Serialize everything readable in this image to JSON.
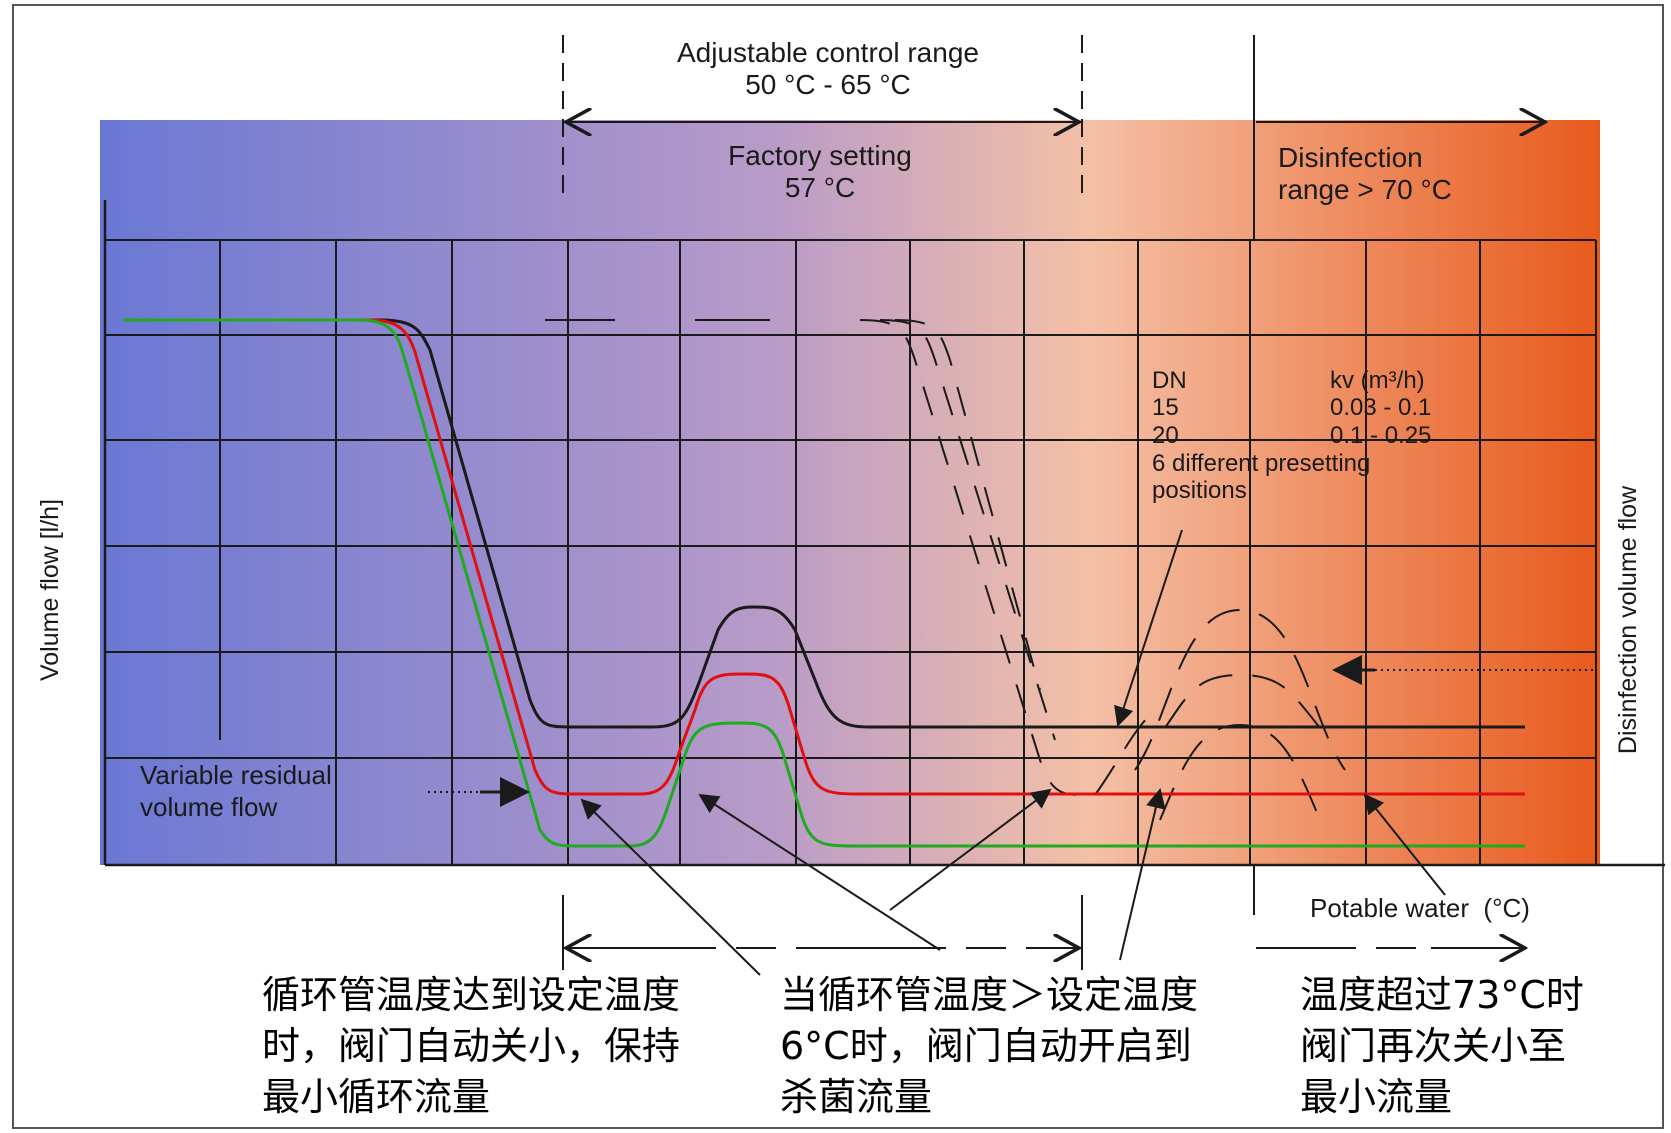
{
  "range_labels": {
    "adjustable_line1": "Adjustable control range",
    "adjustable_line2": "50 °C - 65 °C",
    "factory_line1": "Factory setting",
    "factory_line2": "57 °C",
    "disinfection_line1": "Disinfection",
    "disinfection_line2": "range > 70 °C"
  },
  "axes": {
    "y_label": "Volume flow [l/h]",
    "right_label": "Disinfection volume flow",
    "x_label": "Potable water  (°C)"
  },
  "dn_table": {
    "header_dn": "DN",
    "header_kv": "kv (m³/h)",
    "row1_dn": "15",
    "row1_kv": "0.03 - 0.1",
    "row2_dn": "20",
    "row2_kv": "0.1 - 0.25",
    "note_line1": "6 different presetting",
    "note_line2": "positions"
  },
  "residual_label_line1": "Variable residual",
  "residual_label_line2": "volume flow",
  "captions": {
    "left": "循环管温度达到设定温度\n时，阀门自动关小，保持\n最小循环流量",
    "middle": "当循环管温度＞设定温度\n6°C时，阀门自动开启到\n杀菌流量",
    "right": "温度超过73°C时\n阀门再次关小至\n最小流量"
  },
  "colors": {
    "gradient_start": "#6a78d4",
    "gradient_mid": "#b99bc8",
    "gradient_light": "#f4c0a6",
    "gradient_end": "#e85a1c",
    "curve_black": "#1a1a1a",
    "curve_red": "#e01010",
    "curve_green": "#1faa1f"
  }
}
